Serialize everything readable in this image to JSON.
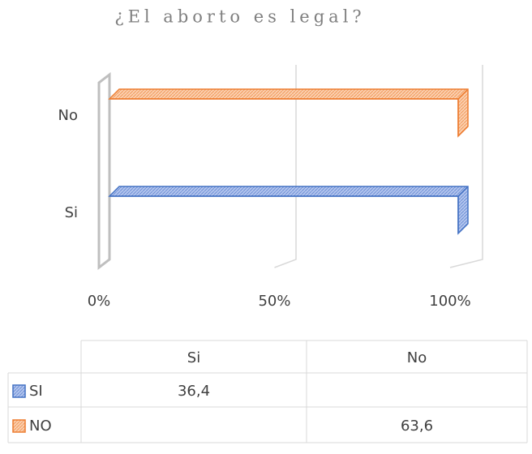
{
  "chart_data": {
    "type": "bar",
    "orientation": "horizontal",
    "stacking": "percent",
    "title": "¿El aborto es legal?",
    "categories": [
      "Si",
      "No"
    ],
    "series": [
      {
        "name": "SI",
        "color": "#4472c4",
        "values": [
          36.4,
          null
        ],
        "value_labels": [
          "36,4",
          null
        ]
      },
      {
        "name": "NO",
        "color": "#ed7d31",
        "values": [
          null,
          63.6
        ],
        "value_labels": [
          null,
          "63,6"
        ]
      }
    ],
    "table_columns": [
      "Si",
      "No"
    ],
    "xlim": [
      0,
      100
    ],
    "xticks": [
      {
        "value": 0,
        "label": "0%"
      },
      {
        "value": 50,
        "label": "50%"
      },
      {
        "value": 100,
        "label": "100%"
      }
    ],
    "grid": true
  }
}
